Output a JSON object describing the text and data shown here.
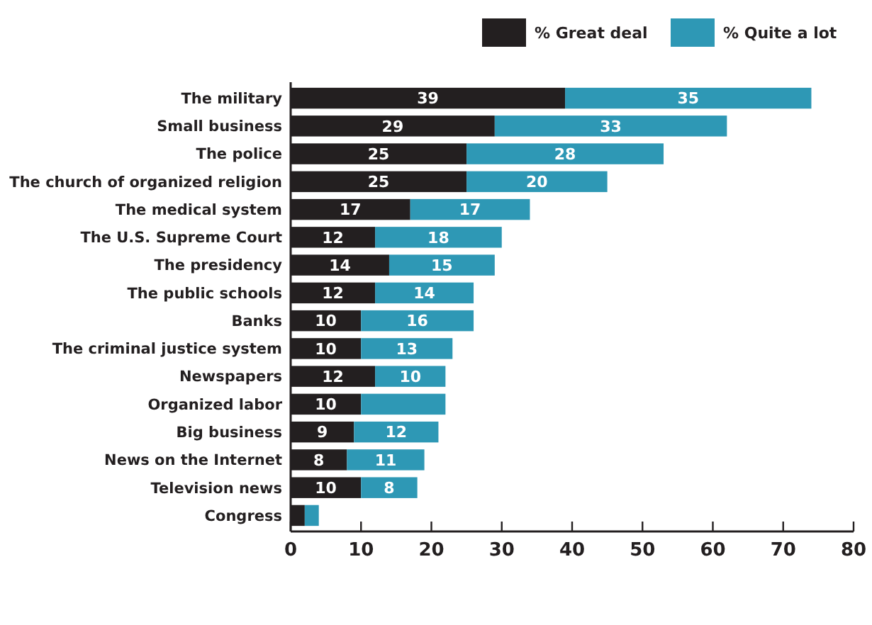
{
  "chart_data": {
    "type": "bar",
    "orientation": "horizontal",
    "stacked": true,
    "legend": "top right",
    "categories": [
      "The military",
      "Small business",
      "The police",
      "The church of organized religion",
      "The medical system",
      "The U.S. Supreme Court",
      "The presidency",
      "The public schools",
      "Banks",
      "The criminal justice system",
      "Newspapers",
      "Organized labor",
      "Big business",
      "News on the Internet",
      "Television news",
      "Congress"
    ],
    "series": [
      {
        "name": "% Great deal",
        "color": "#231f20",
        "values": [
          39,
          29,
          25,
          25,
          17,
          12,
          14,
          12,
          10,
          10,
          12,
          10,
          9,
          8,
          10,
          2
        ],
        "value_labels": [
          "39",
          "29",
          "25",
          "25",
          "17",
          "12",
          "14",
          "12",
          "10",
          "10",
          "12",
          "10",
          "9",
          "8",
          "10",
          null
        ]
      },
      {
        "name": "% Quite a lot",
        "color": "#2e98b5",
        "values": [
          35,
          33,
          28,
          20,
          17,
          18,
          15,
          14,
          16,
          13,
          10,
          12,
          12,
          11,
          8,
          2
        ],
        "value_labels": [
          "35",
          "33",
          "28",
          "20",
          "17",
          "18",
          "15",
          "14",
          "16",
          "13",
          "10",
          null,
          "12",
          "11",
          "8",
          null
        ]
      }
    ],
    "xlim": [
      0,
      80
    ],
    "xticks": [
      0,
      10,
      20,
      30,
      40,
      50,
      60,
      70,
      80
    ],
    "grid": false
  }
}
